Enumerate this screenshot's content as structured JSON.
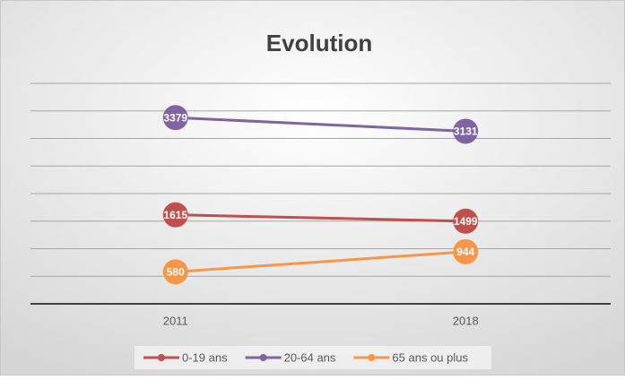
{
  "chart_data": {
    "type": "line",
    "title": "Evolution",
    "categories": [
      "2011",
      "2018"
    ],
    "series": [
      {
        "name": "0-19 ans",
        "color": "#c0504d",
        "values": [
          1615,
          1499
        ]
      },
      {
        "name": "20-64 ans",
        "color": "#8064a2",
        "values": [
          3379,
          3131
        ]
      },
      {
        "name": "65 ans ou plus",
        "color": "#f79646",
        "values": [
          580,
          944
        ]
      }
    ],
    "ylim": [
      0,
      4000
    ],
    "yticks": [
      0,
      500,
      1000,
      1500,
      2000,
      2500,
      3000,
      3500,
      4000
    ],
    "grid": true,
    "legend": "bottom"
  }
}
